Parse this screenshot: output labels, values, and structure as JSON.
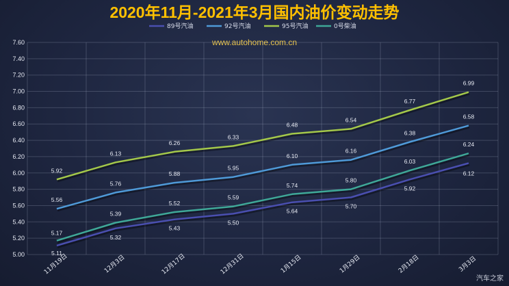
{
  "chart_data": {
    "type": "line",
    "title": "2020年11月-2021年3月国内油价变动走势",
    "categories": [
      "11月19日",
      "12月3日",
      "12月17日",
      "12月31日",
      "1月15日",
      "1月29日",
      "2月18日",
      "3月3日"
    ],
    "series": [
      {
        "name": "89号汽油",
        "color": "#4a4fb0",
        "values": [
          5.11,
          5.32,
          5.43,
          5.5,
          5.64,
          5.7,
          5.92,
          6.12
        ]
      },
      {
        "name": "92号汽油",
        "color": "#4f9ad8",
        "values": [
          5.56,
          5.76,
          5.88,
          5.95,
          6.1,
          6.16,
          6.38,
          6.58
        ]
      },
      {
        "name": "95号汽油",
        "color": "#a4c84a",
        "values": [
          5.92,
          6.13,
          6.26,
          6.33,
          6.48,
          6.54,
          6.77,
          6.99
        ]
      },
      {
        "name": "0号柴油",
        "color": "#3fa898",
        "values": [
          5.17,
          5.39,
          5.52,
          5.59,
          5.74,
          5.8,
          6.03,
          6.24
        ]
      }
    ],
    "ylim": [
      5.0,
      7.6
    ],
    "yticks": [
      "5.00",
      "5.20",
      "5.40",
      "5.60",
      "5.80",
      "6.00",
      "6.20",
      "6.40",
      "6.60",
      "6.80",
      "7.00",
      "7.20",
      "7.40",
      "7.60"
    ],
    "grid": true,
    "legend_position": "top-center"
  },
  "watermark": "www.autohome.com.cn",
  "brand": "汽车之家"
}
